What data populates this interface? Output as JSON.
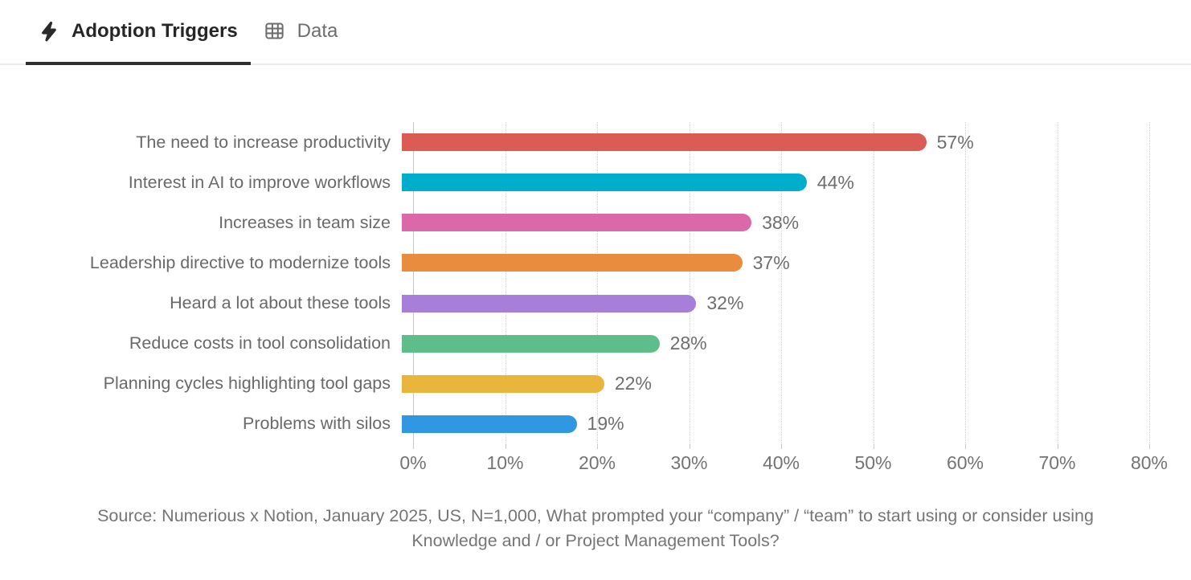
{
  "header": {
    "tabs": [
      {
        "label": "Adoption Triggers",
        "icon": "lightning-bolt-icon",
        "active": true
      },
      {
        "label": "Data",
        "icon": "table-icon",
        "active": false
      }
    ]
  },
  "chart_data": {
    "type": "bar",
    "orientation": "horizontal",
    "title": "Adoption Triggers",
    "categories": [
      "The need to increase productivity",
      "Interest in AI to improve workflows",
      "Increases in team size",
      "Leadership directive to modernize tools",
      "Heard a lot about these tools",
      "Reduce costs in tool consolidation",
      "Planning cycles highlighting tool gaps",
      "Problems with silos"
    ],
    "values": [
      57,
      44,
      38,
      37,
      32,
      28,
      22,
      19
    ],
    "value_labels": [
      "57%",
      "44%",
      "38%",
      "37%",
      "32%",
      "28%",
      "22%",
      "19%"
    ],
    "bar_colors": [
      "#DB5B55",
      "#00AECB",
      "#DB68A8",
      "#E98C3D",
      "#A87EDB",
      "#5FBD8C",
      "#E9B53A",
      "#3297E3"
    ],
    "xlim": [
      0,
      80
    ],
    "x_ticks": [
      "0%",
      "10%",
      "20%",
      "30%",
      "40%",
      "50%",
      "60%",
      "70%",
      "80%"
    ],
    "grid": "vertical-dotted",
    "legend": "none",
    "xlabel": "",
    "ylabel": ""
  },
  "source": {
    "text": "Source: Numerious x Notion, January 2025, US, N=1,000, What prompted your “company” / “team” to start using or consider using Knowledge and / or Project Management Tools?"
  }
}
